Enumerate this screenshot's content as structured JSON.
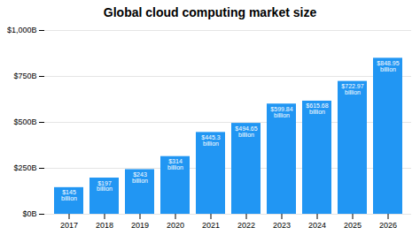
{
  "chart_data": {
    "type": "bar",
    "title": "Global cloud computing market size",
    "categories": [
      "2017",
      "2018",
      "2019",
      "2020",
      "2021",
      "2022",
      "2023",
      "2024",
      "2025",
      "2026"
    ],
    "values": [
      145,
      197,
      243,
      314,
      445.3,
      494.65,
      599.84,
      615.68,
      722.97,
      848.95
    ],
    "value_labels": [
      "$145\nbillion",
      "$197\nbillion",
      "$243\nbillion",
      "$314\nbillion",
      "$445.3\nbillion",
      "$494.65\nbillion",
      "$599.84\nbillion",
      "$615.68\nbillion",
      "$722.97\nbillion",
      "$848.95\nbillion"
    ],
    "data_labels": true,
    "color": "#2196f3",
    "ylim": [
      0,
      1000
    ],
    "yticks": [
      {
        "value": 0,
        "label": "$0B"
      },
      {
        "value": 250,
        "label": "$250B"
      },
      {
        "value": 500,
        "label": "$500B"
      },
      {
        "value": 750,
        "label": "$750B"
      },
      {
        "value": 1000,
        "label": "$1,000B"
      }
    ],
    "grid": true
  }
}
